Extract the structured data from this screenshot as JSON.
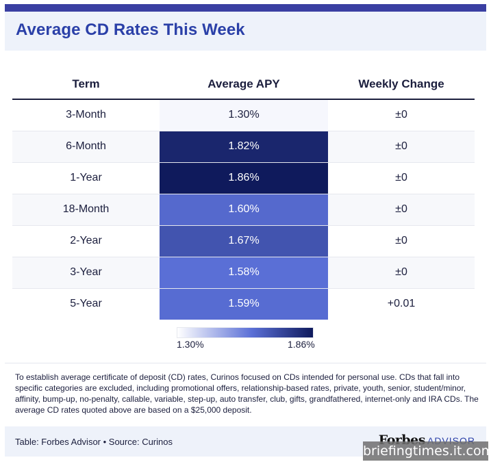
{
  "header": {
    "title": "Average CD Rates This Week"
  },
  "chart_data": {
    "type": "table",
    "title": "Average CD Rates This Week",
    "columns": [
      "Term",
      "Average APY",
      "Weekly Change"
    ],
    "rows": [
      {
        "term": "3-Month",
        "apy": 1.3,
        "apy_label": "1.30%",
        "change": "±0"
      },
      {
        "term": "6-Month",
        "apy": 1.82,
        "apy_label": "1.82%",
        "change": "±0"
      },
      {
        "term": "1-Year",
        "apy": 1.86,
        "apy_label": "1.86%",
        "change": "±0"
      },
      {
        "term": "18-Month",
        "apy": 1.6,
        "apy_label": "1.60%",
        "change": "±0"
      },
      {
        "term": "2-Year",
        "apy": 1.67,
        "apy_label": "1.67%",
        "change": "±0"
      },
      {
        "term": "3-Year",
        "apy": 1.58,
        "apy_label": "1.58%",
        "change": "±0"
      },
      {
        "term": "5-Year",
        "apy": 1.59,
        "apy_label": "1.59%",
        "change": "+0.01"
      }
    ],
    "color_scale": {
      "min": 1.3,
      "max": 1.86,
      "min_label": "1.30%",
      "max_label": "1.86%",
      "colors": [
        "#f6f7fd",
        "#5a6fd6",
        "#0f1a5c"
      ]
    }
  },
  "footnote": "To establish average certificate of deposit (CD) rates, Curinos focused on CDs intended for personal use. CDs that fall into specific categories are excluded, including promotional offers, relationship-based rates, private, youth, senior, student/minor, affinity, bump-up, no-penalty, callable, variable, step-up, auto transfer, club, gifts, grandfathered, internet-only and IRA CDs. The average CD rates quoted above are based on a $25,000 deposit.",
  "footer": {
    "source": "Table: Forbes Advisor • Source: Curinos",
    "brand_forbes": "Forbes",
    "brand_advisor": "ADVISOR"
  },
  "watermark": "briefingtimes.it.com"
}
